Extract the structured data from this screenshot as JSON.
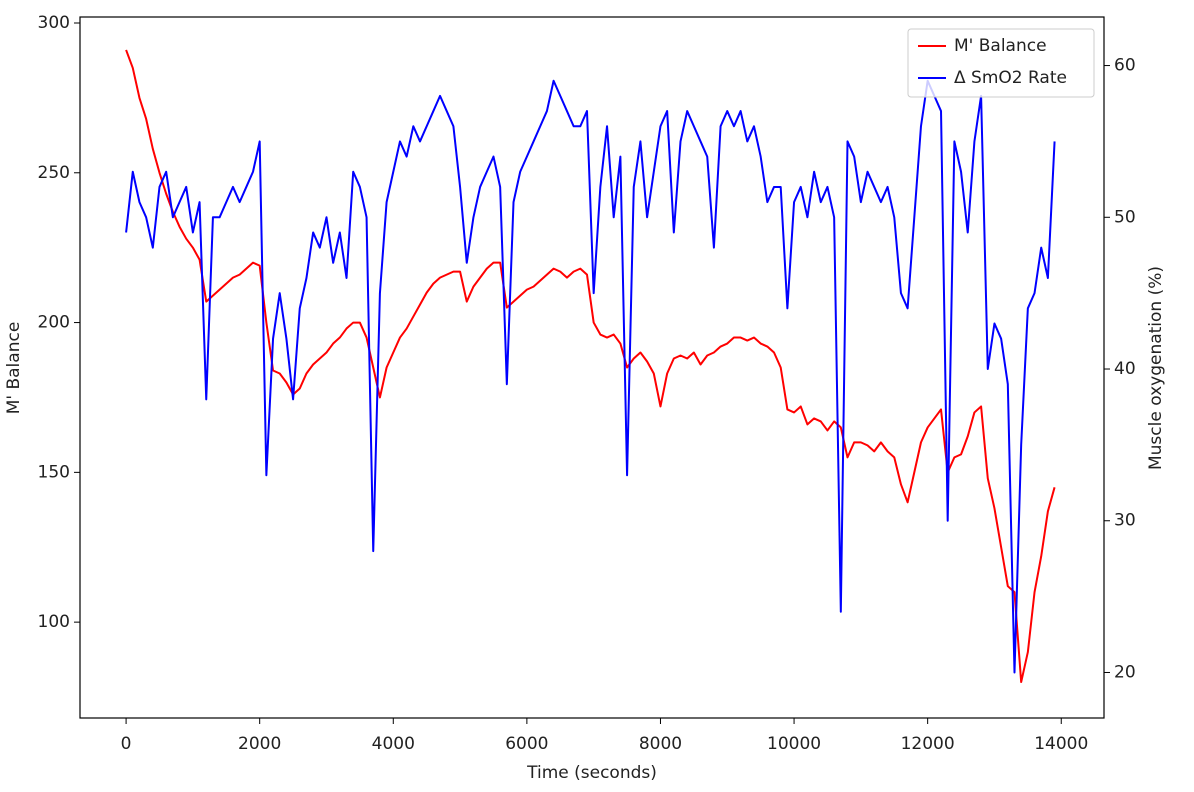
{
  "chart_data": {
    "type": "line",
    "xlabel": "Time (seconds)",
    "ylabel": "M' Balance",
    "y2label": "Muscle oxygenation (%)",
    "xlim": [
      -690,
      14640
    ],
    "ylim": [
      68,
      302
    ],
    "y2lim": [
      17,
      63.2
    ],
    "xticks": [
      0,
      2000,
      4000,
      6000,
      8000,
      10000,
      12000,
      14000
    ],
    "yticks": [
      100,
      150,
      200,
      250,
      300
    ],
    "y2ticks": [
      20,
      30,
      40,
      50,
      60
    ],
    "ycolor": "#ff0000",
    "y2color": "#0000ff",
    "legend": "upper right",
    "x": [
      0,
      100,
      200,
      300,
      400,
      500,
      600,
      700,
      800,
      900,
      1000,
      1100,
      1200,
      1300,
      1400,
      1500,
      1600,
      1700,
      1800,
      1900,
      2000,
      2100,
      2200,
      2300,
      2400,
      2500,
      2600,
      2700,
      2800,
      2900,
      3000,
      3100,
      3200,
      3300,
      3400,
      3500,
      3600,
      3700,
      3800,
      3900,
      4000,
      4100,
      4200,
      4300,
      4400,
      4500,
      4600,
      4700,
      4800,
      4900,
      5000,
      5100,
      5200,
      5300,
      5400,
      5500,
      5600,
      5700,
      5800,
      5900,
      6000,
      6100,
      6200,
      6300,
      6400,
      6500,
      6600,
      6700,
      6800,
      6900,
      7000,
      7100,
      7200,
      7300,
      7400,
      7500,
      7600,
      7700,
      7800,
      7900,
      8000,
      8100,
      8200,
      8300,
      8400,
      8500,
      8600,
      8700,
      8800,
      8900,
      9000,
      9100,
      9200,
      9300,
      9400,
      9500,
      9600,
      9700,
      9800,
      9900,
      10000,
      10100,
      10200,
      10300,
      10400,
      10500,
      10600,
      10700,
      10800,
      10900,
      11000,
      11100,
      11200,
      11300,
      11400,
      11500,
      11600,
      11700,
      11800,
      11900,
      12000,
      12100,
      12200,
      12300,
      12400,
      12500,
      12600,
      12700,
      12800,
      12900,
      13000,
      13100,
      13200,
      13300,
      13400,
      13500,
      13600,
      13700,
      13800,
      13900
    ],
    "series": [
      {
        "name": "M' Balance",
        "color": "#ff0000",
        "axis": "y",
        "values": [
          291,
          285,
          275,
          268,
          258,
          250,
          243,
          237,
          232,
          228,
          225,
          221,
          207,
          209,
          211,
          213,
          215,
          216,
          218,
          220,
          219,
          200,
          184,
          183,
          180,
          176,
          178,
          183,
          186,
          188,
          190,
          193,
          195,
          198,
          200,
          200,
          195,
          185,
          175,
          185,
          190,
          195,
          198,
          202,
          206,
          210,
          213,
          215,
          216,
          217,
          217,
          207,
          212,
          215,
          218,
          220,
          220,
          205,
          207,
          209,
          211,
          212,
          214,
          216,
          218,
          217,
          215,
          217,
          218,
          216,
          200,
          196,
          195,
          196,
          193,
          185,
          188,
          190,
          187,
          183,
          172,
          183,
          188,
          189,
          188,
          190,
          186,
          189,
          190,
          192,
          193,
          195,
          195,
          194,
          195,
          193,
          192,
          190,
          185,
          171,
          170,
          172,
          166,
          168,
          167,
          164,
          167,
          165,
          155,
          160,
          160,
          159,
          157,
          160,
          157,
          155,
          146,
          140,
          150,
          160,
          165,
          168,
          171,
          150,
          155,
          156,
          162,
          170,
          172,
          148,
          138,
          125,
          112,
          110,
          80,
          90,
          110,
          122,
          137,
          145
        ]
      },
      {
        "name": "Δ SmO2 Rate",
        "color": "#0000ff",
        "axis": "y2",
        "values": [
          49,
          53,
          51,
          50,
          48,
          52,
          53,
          50,
          51,
          52,
          49,
          51,
          38,
          50,
          50,
          51,
          52,
          51,
          52,
          53,
          55,
          33,
          42,
          45,
          42,
          38,
          44,
          46,
          49,
          48,
          50,
          47,
          49,
          46,
          53,
          52,
          50,
          28,
          45,
          51,
          53,
          55,
          54,
          56,
          55,
          56,
          57,
          58,
          57,
          56,
          52,
          47,
          50,
          52,
          53,
          54,
          52,
          39,
          51,
          53,
          54,
          55,
          56,
          57,
          59,
          58,
          57,
          56,
          56,
          57,
          45,
          52,
          56,
          50,
          54,
          33,
          52,
          55,
          50,
          53,
          56,
          57,
          49,
          55,
          57,
          56,
          55,
          54,
          48,
          56,
          57,
          56,
          57,
          55,
          56,
          54,
          51,
          52,
          52,
          44,
          51,
          52,
          50,
          53,
          51,
          52,
          50,
          24,
          55,
          54,
          51,
          53,
          52,
          51,
          52,
          50,
          45,
          44,
          50,
          56,
          59,
          58,
          57,
          30,
          55,
          53,
          49,
          55,
          58,
          40,
          43,
          42,
          39,
          20,
          35,
          44,
          45,
          48,
          46,
          55
        ]
      }
    ]
  }
}
